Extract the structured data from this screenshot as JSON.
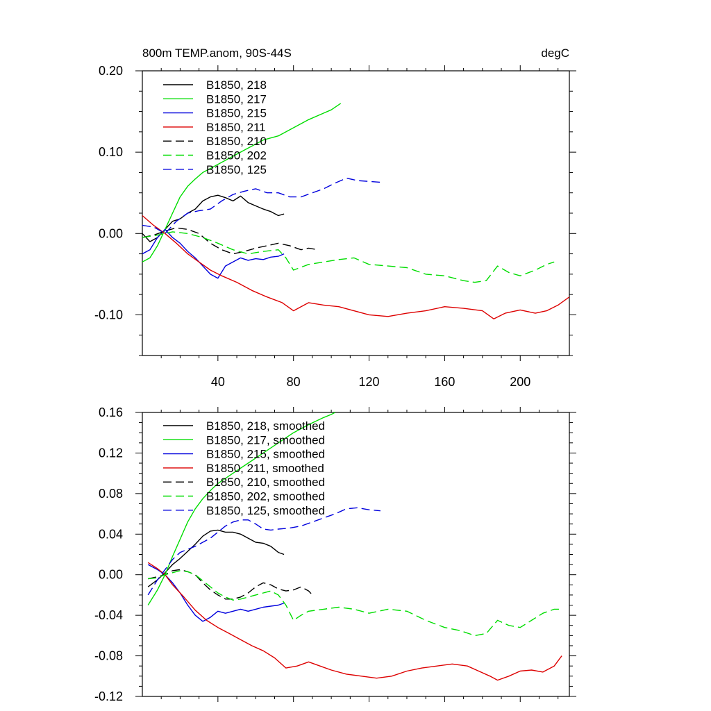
{
  "colors": {
    "black": "#000000",
    "green": "#00dd00",
    "blue": "#0000dd",
    "red": "#dd0000"
  },
  "chart_data": [
    {
      "type": "line",
      "title": "800m TEMP.anom, 90S-44S",
      "units": "degC",
      "xlim": [
        0,
        226
      ],
      "ylim": [
        -0.15,
        0.2
      ],
      "xticks": [
        40,
        80,
        120,
        160,
        200
      ],
      "yticks": [
        -0.1,
        0.0,
        0.1,
        0.2
      ],
      "ytick_labels": [
        "-0.10",
        "0.00",
        "0.10",
        "0.20"
      ],
      "series": [
        {
          "name": "B1850, 218",
          "color": "#000000",
          "dash": false,
          "x": [
            0,
            4,
            8,
            12,
            16,
            20,
            24,
            28,
            32,
            36,
            40,
            44,
            48,
            52,
            56,
            60,
            64,
            68,
            72,
            75
          ],
          "y": [
            0.0,
            -0.01,
            -0.005,
            0.005,
            0.015,
            0.018,
            0.025,
            0.03,
            0.04,
            0.045,
            0.047,
            0.044,
            0.04,
            0.046,
            0.038,
            0.034,
            0.03,
            0.027,
            0.022,
            0.024
          ]
        },
        {
          "name": "B1850, 217",
          "color": "#00dd00",
          "dash": false,
          "x": [
            0,
            4,
            8,
            12,
            16,
            20,
            24,
            28,
            32,
            36,
            40,
            48,
            56,
            64,
            72,
            80,
            88,
            96,
            100,
            105
          ],
          "y": [
            -0.035,
            -0.03,
            -0.015,
            0.005,
            0.025,
            0.045,
            0.058,
            0.067,
            0.075,
            0.08,
            0.085,
            0.095,
            0.105,
            0.115,
            0.12,
            0.13,
            0.14,
            0.148,
            0.152,
            0.16
          ]
        },
        {
          "name": "B1850, 215",
          "color": "#0000dd",
          "dash": false,
          "x": [
            0,
            4,
            8,
            12,
            16,
            20,
            24,
            28,
            32,
            36,
            40,
            44,
            48,
            52,
            56,
            60,
            64,
            68,
            72,
            75
          ],
          "y": [
            -0.025,
            -0.02,
            -0.005,
            0.005,
            -0.005,
            -0.012,
            -0.022,
            -0.03,
            -0.04,
            -0.05,
            -0.055,
            -0.04,
            -0.035,
            -0.03,
            -0.033,
            -0.031,
            -0.032,
            -0.029,
            -0.028,
            -0.025
          ]
        },
        {
          "name": "B1850, 211",
          "color": "#dd0000",
          "dash": false,
          "x": [
            0,
            6,
            12,
            18,
            24,
            30,
            36,
            42,
            50,
            58,
            66,
            74,
            80,
            88,
            96,
            104,
            112,
            120,
            130,
            140,
            150,
            160,
            170,
            180,
            186,
            192,
            200,
            208,
            214,
            220,
            226
          ],
          "y": [
            0.022,
            0.01,
            0.0,
            -0.012,
            -0.025,
            -0.035,
            -0.045,
            -0.052,
            -0.06,
            -0.07,
            -0.078,
            -0.085,
            -0.095,
            -0.085,
            -0.088,
            -0.09,
            -0.095,
            -0.1,
            -0.102,
            -0.098,
            -0.095,
            -0.09,
            -0.092,
            -0.095,
            -0.105,
            -0.098,
            -0.094,
            -0.098,
            -0.095,
            -0.088,
            -0.078
          ]
        },
        {
          "name": "B1850, 210",
          "color": "#000000",
          "dash": true,
          "x": [
            0,
            6,
            12,
            18,
            24,
            30,
            36,
            42,
            48,
            54,
            60,
            66,
            72,
            78,
            84,
            88,
            93
          ],
          "y": [
            -0.005,
            -0.002,
            0.003,
            0.007,
            0.005,
            0.0,
            -0.012,
            -0.02,
            -0.025,
            -0.022,
            -0.018,
            -0.015,
            -0.012,
            -0.015,
            -0.02,
            -0.018,
            -0.02
          ]
        },
        {
          "name": "B1850, 202",
          "color": "#00dd00",
          "dash": true,
          "x": [
            0,
            8,
            16,
            24,
            32,
            40,
            48,
            56,
            64,
            72,
            76,
            80,
            88,
            96,
            104,
            112,
            120,
            130,
            140,
            150,
            160,
            170,
            176,
            182,
            188,
            194,
            200,
            208,
            214,
            218
          ],
          "y": [
            -0.005,
            -0.002,
            0.002,
            0.0,
            -0.005,
            -0.012,
            -0.02,
            -0.025,
            -0.022,
            -0.02,
            -0.03,
            -0.045,
            -0.038,
            -0.035,
            -0.032,
            -0.03,
            -0.038,
            -0.04,
            -0.042,
            -0.05,
            -0.052,
            -0.058,
            -0.06,
            -0.058,
            -0.04,
            -0.048,
            -0.052,
            -0.045,
            -0.038,
            -0.035
          ]
        },
        {
          "name": "B1850, 125",
          "color": "#0000dd",
          "dash": true,
          "x": [
            0,
            6,
            12,
            18,
            24,
            30,
            36,
            42,
            48,
            54,
            60,
            66,
            72,
            78,
            84,
            90,
            96,
            102,
            108,
            114,
            120,
            126
          ],
          "y": [
            0.01,
            0.008,
            0.0,
            0.015,
            0.025,
            0.028,
            0.03,
            0.04,
            0.048,
            0.052,
            0.055,
            0.05,
            0.05,
            0.045,
            0.045,
            0.05,
            0.055,
            0.062,
            0.068,
            0.065,
            0.064,
            0.063
          ]
        }
      ]
    },
    {
      "type": "line",
      "title": "",
      "xlim": [
        0,
        226
      ],
      "ylim": [
        -0.12,
        0.16
      ],
      "xticks": [
        40,
        80,
        120,
        160,
        200
      ],
      "yticks": [
        -0.12,
        -0.08,
        -0.04,
        0.0,
        0.04,
        0.08,
        0.12,
        0.16
      ],
      "ytick_labels": [
        "-0.12",
        "-0.08",
        "-0.04",
        "0.00",
        "0.04",
        "0.08",
        "0.12",
        "0.16"
      ],
      "series": [
        {
          "name": "B1850, 218, smoothed",
          "color": "#000000",
          "dash": false,
          "x": [
            3,
            8,
            12,
            16,
            20,
            24,
            28,
            32,
            36,
            40,
            44,
            48,
            52,
            56,
            60,
            64,
            68,
            72,
            75
          ],
          "y": [
            -0.012,
            -0.005,
            0.002,
            0.01,
            0.016,
            0.023,
            0.03,
            0.038,
            0.043,
            0.044,
            0.042,
            0.042,
            0.04,
            0.036,
            0.032,
            0.031,
            0.028,
            0.022,
            0.02
          ]
        },
        {
          "name": "B1850, 217, smoothed",
          "color": "#00dd00",
          "dash": false,
          "x": [
            3,
            8,
            12,
            16,
            20,
            24,
            28,
            32,
            36,
            40,
            48,
            56,
            64,
            72,
            80,
            88,
            96,
            100,
            102
          ],
          "y": [
            -0.03,
            -0.015,
            0.0,
            0.018,
            0.035,
            0.052,
            0.065,
            0.075,
            0.083,
            0.09,
            0.1,
            0.11,
            0.12,
            0.13,
            0.14,
            0.148,
            0.155,
            0.158,
            0.16
          ]
        },
        {
          "name": "B1850, 215, smoothed",
          "color": "#0000dd",
          "dash": false,
          "x": [
            3,
            8,
            12,
            16,
            20,
            24,
            28,
            32,
            36,
            40,
            44,
            48,
            52,
            56,
            60,
            64,
            68,
            72,
            75
          ],
          "y": [
            0.01,
            0.005,
            0.0,
            -0.008,
            -0.018,
            -0.03,
            -0.04,
            -0.046,
            -0.042,
            -0.036,
            -0.038,
            -0.036,
            -0.034,
            -0.036,
            -0.034,
            -0.032,
            -0.031,
            -0.03,
            -0.028
          ]
        },
        {
          "name": "B1850, 211, smoothed",
          "color": "#dd0000",
          "dash": false,
          "x": [
            3,
            8,
            12,
            16,
            22,
            28,
            34,
            40,
            46,
            52,
            58,
            64,
            70,
            76,
            82,
            88,
            94,
            100,
            108,
            116,
            124,
            132,
            140,
            148,
            156,
            164,
            172,
            178,
            184,
            188,
            194,
            200,
            206,
            212,
            218,
            222
          ],
          "y": [
            0.012,
            0.006,
            0.0,
            -0.01,
            -0.022,
            -0.035,
            -0.045,
            -0.052,
            -0.058,
            -0.064,
            -0.07,
            -0.075,
            -0.082,
            -0.092,
            -0.09,
            -0.086,
            -0.09,
            -0.094,
            -0.098,
            -0.1,
            -0.102,
            -0.1,
            -0.095,
            -0.092,
            -0.09,
            -0.088,
            -0.09,
            -0.095,
            -0.1,
            -0.104,
            -0.1,
            -0.095,
            -0.094,
            -0.096,
            -0.09,
            -0.08
          ]
        },
        {
          "name": "B1850, 210, smoothed",
          "color": "#000000",
          "dash": true,
          "x": [
            3,
            8,
            12,
            16,
            20,
            24,
            28,
            32,
            36,
            40,
            44,
            48,
            52,
            56,
            60,
            64,
            68,
            72,
            76,
            80,
            84,
            88,
            90
          ],
          "y": [
            -0.004,
            -0.002,
            0.0,
            0.004,
            0.005,
            0.003,
            0.0,
            -0.008,
            -0.015,
            -0.02,
            -0.024,
            -0.024,
            -0.022,
            -0.018,
            -0.012,
            -0.008,
            -0.01,
            -0.014,
            -0.016,
            -0.015,
            -0.012,
            -0.016,
            -0.02
          ]
        },
        {
          "name": "B1850, 202, smoothed",
          "color": "#00dd00",
          "dash": true,
          "x": [
            3,
            8,
            12,
            16,
            20,
            24,
            28,
            32,
            36,
            40,
            44,
            48,
            52,
            56,
            60,
            64,
            68,
            72,
            76,
            80,
            84,
            88,
            96,
            104,
            112,
            120,
            130,
            140,
            150,
            160,
            168,
            176,
            182,
            188,
            194,
            200,
            206,
            212,
            218,
            222
          ],
          "y": [
            -0.004,
            -0.003,
            0.0,
            0.002,
            0.004,
            0.003,
            0.0,
            -0.006,
            -0.012,
            -0.018,
            -0.022,
            -0.025,
            -0.024,
            -0.022,
            -0.02,
            -0.018,
            -0.016,
            -0.02,
            -0.03,
            -0.045,
            -0.04,
            -0.036,
            -0.034,
            -0.032,
            -0.034,
            -0.038,
            -0.034,
            -0.036,
            -0.045,
            -0.052,
            -0.055,
            -0.06,
            -0.058,
            -0.045,
            -0.05,
            -0.052,
            -0.045,
            -0.038,
            -0.034,
            -0.034
          ]
        },
        {
          "name": "B1850, 125, smoothed",
          "color": "#0000dd",
          "dash": true,
          "x": [
            3,
            8,
            12,
            16,
            20,
            24,
            28,
            32,
            36,
            40,
            44,
            48,
            52,
            56,
            60,
            64,
            68,
            72,
            78,
            84,
            90,
            96,
            102,
            108,
            114,
            120,
            126
          ],
          "y": [
            -0.02,
            -0.005,
            0.005,
            0.015,
            0.022,
            0.025,
            0.028,
            0.032,
            0.036,
            0.042,
            0.048,
            0.052,
            0.054,
            0.054,
            0.05,
            0.045,
            0.044,
            0.045,
            0.046,
            0.048,
            0.052,
            0.056,
            0.06,
            0.065,
            0.066,
            0.064,
            0.063
          ]
        }
      ]
    }
  ]
}
